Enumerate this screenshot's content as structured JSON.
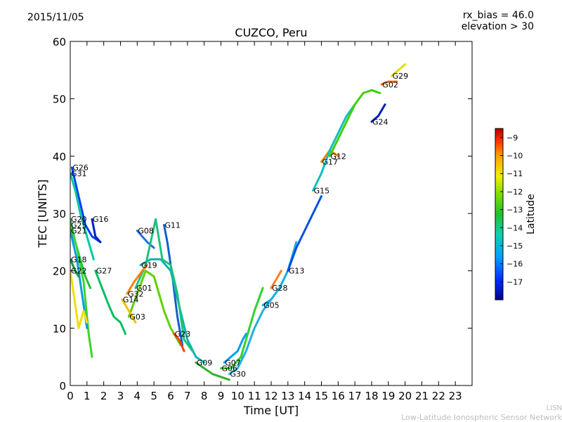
{
  "header": {
    "date": "2015/11/05",
    "rx_bias": "rx_bias = 46.0",
    "elevation": "elevation > 30"
  },
  "footer": {
    "network_short": "LISN",
    "network_full": "Low-Latitude Ionospheric Sensor Network"
  },
  "chart_data": {
    "type": "line",
    "title": "CUZCO, Peru",
    "xlabel": "Time [UT]",
    "ylabel": "TEC [UNITS]",
    "xlim": [
      0,
      24
    ],
    "ylim": [
      0,
      60
    ],
    "xticks": [
      "0",
      "1",
      "2",
      "3",
      "4",
      "5",
      "6",
      "7",
      "8",
      "9",
      "10",
      "11",
      "12",
      "13",
      "14",
      "15",
      "16",
      "17",
      "18",
      "19",
      "20",
      "21",
      "22",
      "23"
    ],
    "yticks": [
      "0",
      "10",
      "20",
      "30",
      "40",
      "50",
      "60"
    ],
    "grid": false,
    "colorbar": {
      "label": "Latitude",
      "range": [
        -18,
        -8.5
      ],
      "ticks": [
        "-9",
        "-10",
        "-11",
        "-12",
        "-13",
        "-14",
        "-15",
        "-16",
        "-17"
      ],
      "colors": [
        "#00008f",
        "#0050ff",
        "#00b0f0",
        "#10e0a0",
        "#2ec82e",
        "#90e000",
        "#f0f000",
        "#ffa000",
        "#ff3000",
        "#b00000"
      ]
    },
    "series": [
      {
        "name": "G26",
        "color": "#0040ff",
        "points": [
          [
            0.1,
            38
          ],
          [
            0.5,
            33
          ],
          [
            0.9,
            28
          ],
          [
            1.3,
            26
          ],
          [
            1.8,
            25
          ]
        ]
      },
      {
        "name": "G31",
        "color": "#00c8a0",
        "points": [
          [
            0,
            37
          ],
          [
            0.3,
            34
          ],
          [
            0.6,
            30
          ],
          [
            1.0,
            26
          ],
          [
            1.4,
            22
          ]
        ]
      },
      {
        "name": "G20",
        "color": "#20c040",
        "points": [
          [
            0,
            29
          ],
          [
            0.3,
            25
          ],
          [
            0.6,
            22
          ],
          [
            0.9,
            19
          ],
          [
            1.2,
            17
          ]
        ]
      },
      {
        "name": "G25",
        "color": "#40d030",
        "points": [
          [
            0,
            28
          ],
          [
            0.4,
            24
          ],
          [
            0.8,
            18
          ],
          [
            1.1,
            9
          ],
          [
            1.3,
            5
          ]
        ]
      },
      {
        "name": "G21",
        "color": "#00a0e0",
        "points": [
          [
            0,
            27
          ],
          [
            0.4,
            22
          ],
          [
            0.7,
            16
          ],
          [
            1.0,
            10
          ]
        ]
      },
      {
        "name": "G16",
        "color": "#0020c0",
        "points": [
          [
            1.3,
            29
          ],
          [
            1.5,
            26
          ],
          [
            1.8,
            25
          ]
        ]
      },
      {
        "name": "G18",
        "color": "#00a040",
        "points": [
          [
            0,
            22
          ],
          [
            0.3,
            20
          ],
          [
            0.5,
            19
          ]
        ]
      },
      {
        "name": "G22",
        "color": "#f0e000",
        "points": [
          [
            0,
            20
          ],
          [
            0.3,
            14
          ],
          [
            0.5,
            10
          ],
          [
            0.8,
            13
          ],
          [
            1.0,
            11
          ]
        ]
      },
      {
        "name": "G08",
        "color": "#2070e0",
        "points": [
          [
            4.0,
            27
          ],
          [
            4.3,
            26
          ],
          [
            4.6,
            25
          ],
          [
            5.0,
            24
          ]
        ]
      },
      {
        "name": "G11",
        "color": "#1060d0",
        "points": [
          [
            5.6,
            28
          ],
          [
            5.8,
            25
          ],
          [
            6.1,
            19
          ],
          [
            6.4,
            12
          ],
          [
            6.7,
            7
          ]
        ]
      },
      {
        "name": "G19",
        "color": "#10b0b0",
        "points": [
          [
            4.2,
            21
          ],
          [
            4.8,
            22
          ],
          [
            5.4,
            22
          ],
          [
            6.0,
            20
          ],
          [
            6.5,
            14
          ],
          [
            7,
            8
          ],
          [
            7.5,
            5
          ],
          [
            8,
            4
          ]
        ]
      },
      {
        "name": "G01",
        "color": "#20c080",
        "points": [
          [
            3.9,
            17
          ],
          [
            4.5,
            21
          ],
          [
            5.1,
            29
          ],
          [
            5.5,
            22
          ],
          [
            6.0,
            21
          ],
          [
            6.4,
            16
          ],
          [
            6.8,
            8
          ],
          [
            7.3,
            6
          ]
        ]
      },
      {
        "name": "G03",
        "color": "#60d000",
        "points": [
          [
            3.5,
            12
          ],
          [
            4.0,
            16
          ],
          [
            4.5,
            20
          ],
          [
            5.0,
            19
          ],
          [
            5.6,
            13
          ],
          [
            6.0,
            10
          ],
          [
            6.6,
            7
          ]
        ]
      },
      {
        "name": "G32",
        "color": "#ff8000",
        "points": [
          [
            3.4,
            16
          ],
          [
            3.8,
            18
          ],
          [
            4.3,
            20
          ],
          [
            4.6,
            21
          ]
        ]
      },
      {
        "name": "G14",
        "color": "#f0c000",
        "points": [
          [
            3.1,
            15
          ],
          [
            3.5,
            13
          ],
          [
            3.9,
            11
          ]
        ]
      },
      {
        "name": "G27",
        "color": "#00c060",
        "points": [
          [
            1.5,
            20
          ],
          [
            1.9,
            17
          ],
          [
            2.3,
            14
          ],
          [
            2.6,
            12
          ],
          [
            3.0,
            11
          ],
          [
            3.3,
            9
          ]
        ]
      },
      {
        "name": "G23",
        "color": "#ff4000",
        "points": [
          [
            6.2,
            9
          ],
          [
            6.5,
            8
          ],
          [
            6.8,
            6
          ]
        ]
      },
      {
        "name": "G09",
        "color": "#30b030",
        "points": [
          [
            7.5,
            4
          ],
          [
            8.0,
            3
          ],
          [
            8.5,
            2
          ],
          [
            9.0,
            1.5
          ],
          [
            9.5,
            1
          ]
        ]
      },
      {
        "name": "G07",
        "color": "#00a0f0",
        "points": [
          [
            9.2,
            4
          ],
          [
            9.6,
            5
          ],
          [
            10.0,
            6
          ],
          [
            10.3,
            8
          ],
          [
            10.5,
            9
          ]
        ]
      },
      {
        "name": "G06",
        "color": "#30d030",
        "points": [
          [
            9.0,
            3
          ],
          [
            9.6,
            3
          ],
          [
            10.2,
            5
          ],
          [
            10.6,
            9
          ],
          [
            11.0,
            13
          ],
          [
            11.5,
            17
          ]
        ]
      },
      {
        "name": "G30",
        "color": "#20b0e0",
        "points": [
          [
            9.5,
            2
          ],
          [
            10.0,
            3
          ],
          [
            10.5,
            6
          ],
          [
            11.0,
            10
          ],
          [
            11.5,
            13
          ],
          [
            12.0,
            15
          ]
        ]
      },
      {
        "name": "G28",
        "color": "#ff8020",
        "points": [
          [
            12.0,
            17
          ],
          [
            12.3,
            18.5
          ],
          [
            12.6,
            20
          ]
        ]
      },
      {
        "name": "G05",
        "color": "#10b0e0",
        "points": [
          [
            11.5,
            14
          ],
          [
            12.0,
            15
          ],
          [
            12.5,
            17
          ],
          [
            13.0,
            20
          ],
          [
            13.5,
            25
          ]
        ]
      },
      {
        "name": "G13",
        "color": "#0050e0",
        "points": [
          [
            13.0,
            20
          ],
          [
            13.5,
            24
          ],
          [
            14.0,
            27
          ],
          [
            14.5,
            30
          ],
          [
            15.0,
            33
          ]
        ]
      },
      {
        "name": "G17",
        "color": "#ff8000",
        "points": [
          [
            15.0,
            39
          ],
          [
            15.5,
            41
          ],
          [
            16.0,
            40
          ]
        ]
      },
      {
        "name": "G15",
        "color": "#10c0c0",
        "points": [
          [
            14.5,
            34
          ],
          [
            15.0,
            37
          ],
          [
            15.5,
            41
          ],
          [
            16.0,
            44
          ],
          [
            16.5,
            47
          ],
          [
            17.0,
            49
          ]
        ]
      },
      {
        "name": "G12",
        "color": "#40d000",
        "points": [
          [
            15.5,
            40
          ],
          [
            16.0,
            43
          ],
          [
            16.5,
            46
          ],
          [
            17.0,
            49
          ],
          [
            17.5,
            51
          ],
          [
            18.0,
            51.5
          ],
          [
            18.5,
            51
          ]
        ]
      },
      {
        "name": "G24",
        "color": "#0020c0",
        "points": [
          [
            18.0,
            46
          ],
          [
            18.4,
            47
          ],
          [
            18.8,
            49
          ]
        ]
      },
      {
        "name": "G02",
        "color": "#ff6000",
        "points": [
          [
            18.6,
            52.5
          ],
          [
            19.0,
            53
          ],
          [
            19.5,
            53
          ]
        ]
      },
      {
        "name": "G29",
        "color": "#e0e000",
        "points": [
          [
            19.2,
            54
          ],
          [
            19.6,
            55
          ],
          [
            20.0,
            56
          ]
        ]
      }
    ]
  }
}
